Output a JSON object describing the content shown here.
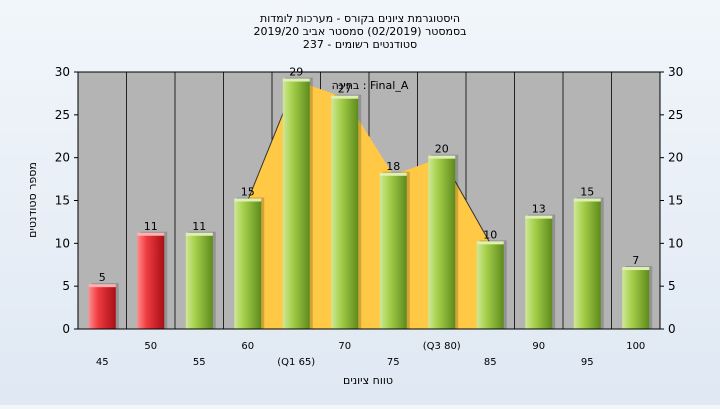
{
  "title_lines": [
    "היסטוגרמת ציונים בקורס - מערכות לומדות",
    "בסמסטר  (02/2019)  סמסטר אביב 2019/20",
    "סטודנטים רשומים - 237"
  ],
  "colors": {
    "plot_bg": "#b4b4b4",
    "failing_bar": "#e8313a",
    "passing_bar": "#95c23a",
    "overlay_fill": "#ffc845",
    "frame": "#000000"
  },
  "chart_data": {
    "type": "bar",
    "ylabel": "מספר סטודנטים",
    "xlabel": "טווח ציונים",
    "ylim": [
      0,
      30
    ],
    "yticks": [
      0,
      5,
      10,
      15,
      20,
      25,
      30
    ],
    "y_axis_both_sides": true,
    "grid": "vertical",
    "categories": [
      "45",
      "50",
      "55",
      "60",
      "(Q1 65)",
      "70",
      "75",
      "(Q3 80)",
      "85",
      "90",
      "95",
      "100"
    ],
    "values": [
      5,
      11,
      11,
      15,
      29,
      27,
      18,
      20,
      10,
      13,
      15,
      7
    ],
    "bar_status": [
      "fail",
      "fail",
      "pass",
      "pass",
      "pass",
      "pass",
      "pass",
      "pass",
      "pass",
      "pass",
      "pass",
      "pass"
    ],
    "annotation": "בחינה : Final_A"
  }
}
